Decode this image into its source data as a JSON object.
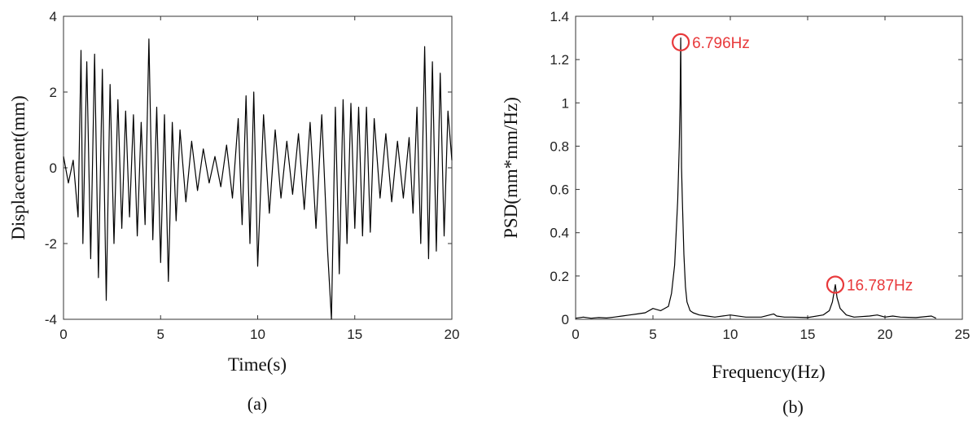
{
  "colors": {
    "trace": "#000000",
    "annotation": "#e8393b",
    "axis": "#333333"
  },
  "chart_data": [
    {
      "type": "line",
      "caption": "(a)",
      "title": "",
      "xlabel": "Time(s)",
      "ylabel": "Displacement(mm)",
      "xlim": [
        0,
        20
      ],
      "ylim": [
        -4,
        4
      ],
      "xticks": [
        "0",
        "5",
        "10",
        "15",
        "20"
      ],
      "yticks": [
        "-4",
        "-2",
        "0",
        "2",
        "4"
      ],
      "grid": false,
      "series": [
        {
          "x": [
            0,
            0.25,
            0.5,
            0.75,
            0.9,
            1.0,
            1.2,
            1.4,
            1.6,
            1.8,
            2.0,
            2.2,
            2.4,
            2.6,
            2.8,
            3.0,
            3.2,
            3.4,
            3.6,
            3.8,
            4.0,
            4.2,
            4.4,
            4.6,
            4.8,
            5.0,
            5.2,
            5.4,
            5.6,
            5.8,
            6.0,
            6.3,
            6.6,
            6.9,
            7.2,
            7.5,
            7.8,
            8.1,
            8.4,
            8.7,
            9.0,
            9.2,
            9.4,
            9.6,
            9.8,
            10.0,
            10.3,
            10.6,
            10.9,
            11.2,
            11.5,
            11.8,
            12.1,
            12.4,
            12.7,
            13.0,
            13.3,
            13.6,
            13.8,
            14.0,
            14.2,
            14.4,
            14.6,
            14.8,
            15.0,
            15.2,
            15.4,
            15.6,
            15.8,
            16.0,
            16.3,
            16.6,
            16.9,
            17.2,
            17.5,
            17.8,
            18.0,
            18.2,
            18.4,
            18.6,
            18.8,
            19.0,
            19.2,
            19.4,
            19.6,
            19.8,
            20.0
          ],
          "y": [
            0.3,
            -0.4,
            0.2,
            -1.3,
            3.1,
            -2.0,
            2.8,
            -2.4,
            3.0,
            -2.9,
            2.6,
            -3.5,
            2.2,
            -2.0,
            1.8,
            -1.6,
            1.5,
            -1.3,
            1.4,
            -1.8,
            1.2,
            -1.5,
            3.4,
            -1.9,
            1.6,
            -2.5,
            1.4,
            -3.0,
            1.2,
            -1.4,
            1.0,
            -0.9,
            0.7,
            -0.6,
            0.5,
            -0.4,
            0.3,
            -0.5,
            0.6,
            -0.8,
            1.3,
            -1.5,
            1.9,
            -2.0,
            2.0,
            -2.6,
            1.4,
            -1.2,
            1.0,
            -0.8,
            0.7,
            -0.7,
            0.9,
            -1.1,
            1.2,
            -1.6,
            1.4,
            -2.2,
            -4.0,
            1.6,
            -2.8,
            1.8,
            -2.0,
            1.7,
            -1.6,
            1.6,
            -1.8,
            1.6,
            -1.7,
            1.3,
            -0.8,
            0.9,
            -0.9,
            0.7,
            -0.8,
            0.8,
            -1.2,
            1.6,
            -2.0,
            3.2,
            -2.4,
            2.8,
            -2.2,
            2.5,
            -1.8,
            1.5,
            0.2
          ]
        }
      ]
    },
    {
      "type": "line",
      "caption": "(b)",
      "title": "",
      "xlabel": "Frequency(Hz)",
      "ylabel": "PSD(mm*mm/Hz)",
      "xlim": [
        0,
        25
      ],
      "ylim": [
        0,
        1.4
      ],
      "xticks": [
        "0",
        "5",
        "10",
        "15",
        "20",
        "25"
      ],
      "yticks": [
        "0",
        "0.2",
        "0.4",
        "0.6",
        "0.8",
        "1",
        "1.2",
        "1.4"
      ],
      "grid": false,
      "series": [
        {
          "x": [
            0,
            0.5,
            1.0,
            1.5,
            2.0,
            2.5,
            3.0,
            3.5,
            4.0,
            4.5,
            5.0,
            5.5,
            6.0,
            6.2,
            6.4,
            6.5,
            6.6,
            6.7,
            6.75,
            6.796,
            6.85,
            6.9,
            7.0,
            7.1,
            7.2,
            7.4,
            7.6,
            8.0,
            8.5,
            9.0,
            10.0,
            11.0,
            12.0,
            12.8,
            13.0,
            13.5,
            14.0,
            15.0,
            16.0,
            16.4,
            16.6,
            16.787,
            16.9,
            17.1,
            17.5,
            18.0,
            19.0,
            19.5,
            20.0,
            20.5,
            21.0,
            22.0,
            23.0,
            23.3
          ],
          "y": [
            0.005,
            0.01,
            0.005,
            0.008,
            0.006,
            0.01,
            0.015,
            0.02,
            0.025,
            0.03,
            0.05,
            0.04,
            0.06,
            0.12,
            0.25,
            0.4,
            0.55,
            0.8,
            1.0,
            1.3,
            0.7,
            0.55,
            0.3,
            0.15,
            0.08,
            0.04,
            0.03,
            0.02,
            0.015,
            0.01,
            0.02,
            0.01,
            0.01,
            0.025,
            0.015,
            0.01,
            0.01,
            0.008,
            0.02,
            0.04,
            0.08,
            0.16,
            0.1,
            0.05,
            0.02,
            0.01,
            0.015,
            0.02,
            0.01,
            0.015,
            0.01,
            0.008,
            0.015,
            0.005
          ]
        }
      ],
      "annotations": [
        {
          "label": "6.796Hz",
          "x": 6.796,
          "y": 1.28
        },
        {
          "label": "16.787Hz",
          "x": 16.787,
          "y": 0.16
        }
      ]
    }
  ]
}
